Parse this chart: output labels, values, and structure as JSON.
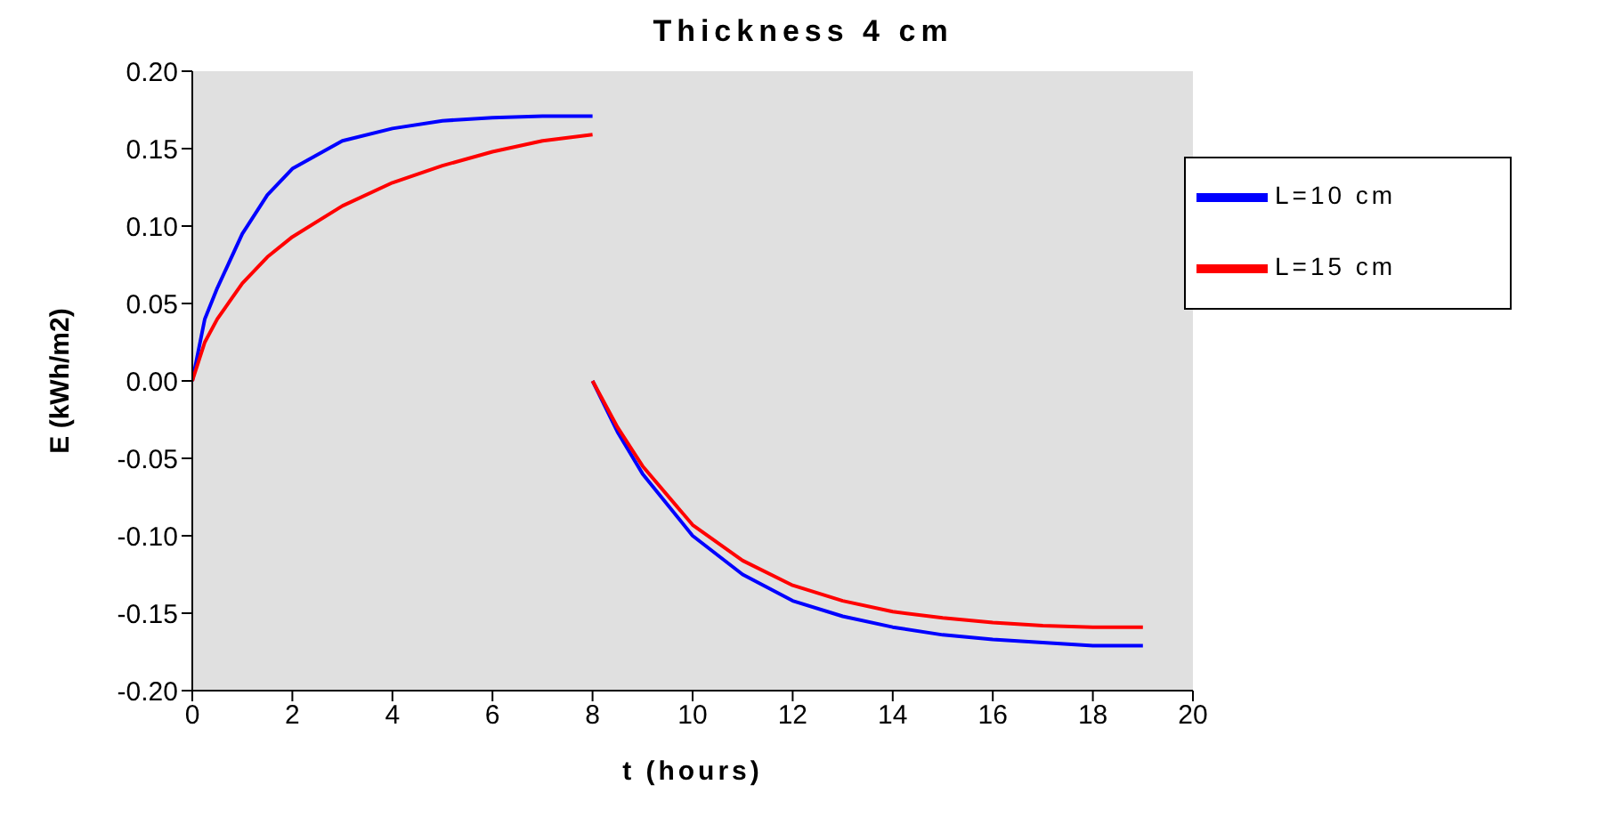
{
  "chart_data": {
    "type": "line",
    "title": "Thickness 4 cm",
    "xlabel": "t (hours)",
    "ylabel": "E (kWh/m2)",
    "series": [
      {
        "name": "L=10 cm",
        "color": "#0000ff",
        "x": [
          0,
          0.25,
          0.5,
          1,
          1.5,
          2,
          3,
          4,
          5,
          6,
          7,
          8
        ],
        "values": [
          0,
          0.04,
          0.06,
          0.095,
          0.12,
          0.137,
          0.155,
          0.163,
          0.168,
          0.17,
          0.171,
          0.171
        ]
      },
      {
        "name": "L=15 cm",
        "color": "#ff0000",
        "x": [
          0,
          0.25,
          0.5,
          1,
          1.5,
          2,
          3,
          4,
          5,
          6,
          7,
          8
        ],
        "values": [
          0,
          0.025,
          0.04,
          0.063,
          0.08,
          0.093,
          0.113,
          0.128,
          0.139,
          0.148,
          0.155,
          0.159
        ]
      },
      {
        "color": "#0000ff",
        "x": [
          8,
          8.5,
          9,
          10,
          11,
          12,
          13,
          14,
          15,
          16,
          17,
          18,
          19
        ],
        "values": [
          0,
          -0.033,
          -0.06,
          -0.1,
          -0.125,
          -0.142,
          -0.152,
          -0.159,
          -0.164,
          -0.167,
          -0.169,
          -0.171,
          -0.171
        ]
      },
      {
        "color": "#ff0000",
        "x": [
          8,
          8.5,
          9,
          10,
          11,
          12,
          13,
          14,
          15,
          16,
          17,
          18,
          19
        ],
        "values": [
          0,
          -0.03,
          -0.055,
          -0.093,
          -0.116,
          -0.132,
          -0.142,
          -0.149,
          -0.153,
          -0.156,
          -0.158,
          -0.159,
          -0.159
        ]
      }
    ],
    "xlim": [
      0,
      20
    ],
    "xticks": [
      0,
      2,
      4,
      6,
      8,
      10,
      12,
      14,
      16,
      18,
      20
    ],
    "ylim": [
      -0.2,
      0.2
    ],
    "yticks": [
      {
        "value": -0.2,
        "label": "-0.20"
      },
      {
        "value": -0.15,
        "label": "-0.15"
      },
      {
        "value": -0.1,
        "label": "-0.10"
      },
      {
        "value": -0.05,
        "label": "-0.05"
      },
      {
        "value": 0,
        "label": "0.00"
      },
      {
        "value": 0.05,
        "label": "0.05"
      },
      {
        "value": 0.1,
        "label": "0.10"
      },
      {
        "value": 0.15,
        "label": "0.15"
      },
      {
        "value": 0.2,
        "label": "0.20"
      }
    ],
    "grid": false,
    "legend": "top right",
    "marker": "none",
    "line_style": "solid"
  }
}
